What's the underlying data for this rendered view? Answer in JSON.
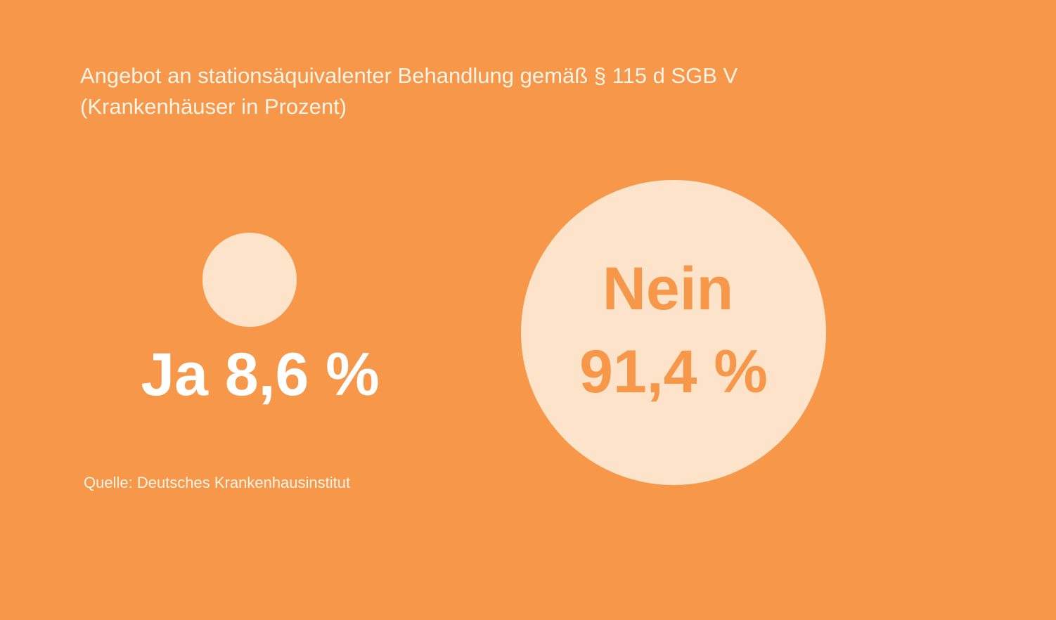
{
  "chart_data": {
    "type": "bubble",
    "title_line1": "Angebot an stationsäquivalenter Behandlung gemäß § 115 d SGB V",
    "title_line2": "(Krankenhäuser in Prozent)",
    "categories": [
      "Ja",
      "Nein"
    ],
    "values": [
      8.6,
      91.4
    ],
    "unit": "%",
    "labels": {
      "ja": "Ja 8,6 %",
      "nein_category": "Nein",
      "nein_value": "91,4 %"
    },
    "source": "Quelle: Deutsches Krankenhausinstitut",
    "colors": {
      "background": "#F79749",
      "bubble": "#FCE3C9",
      "ja_text": "#FFFFFF",
      "nein_text": "#F79749"
    }
  }
}
